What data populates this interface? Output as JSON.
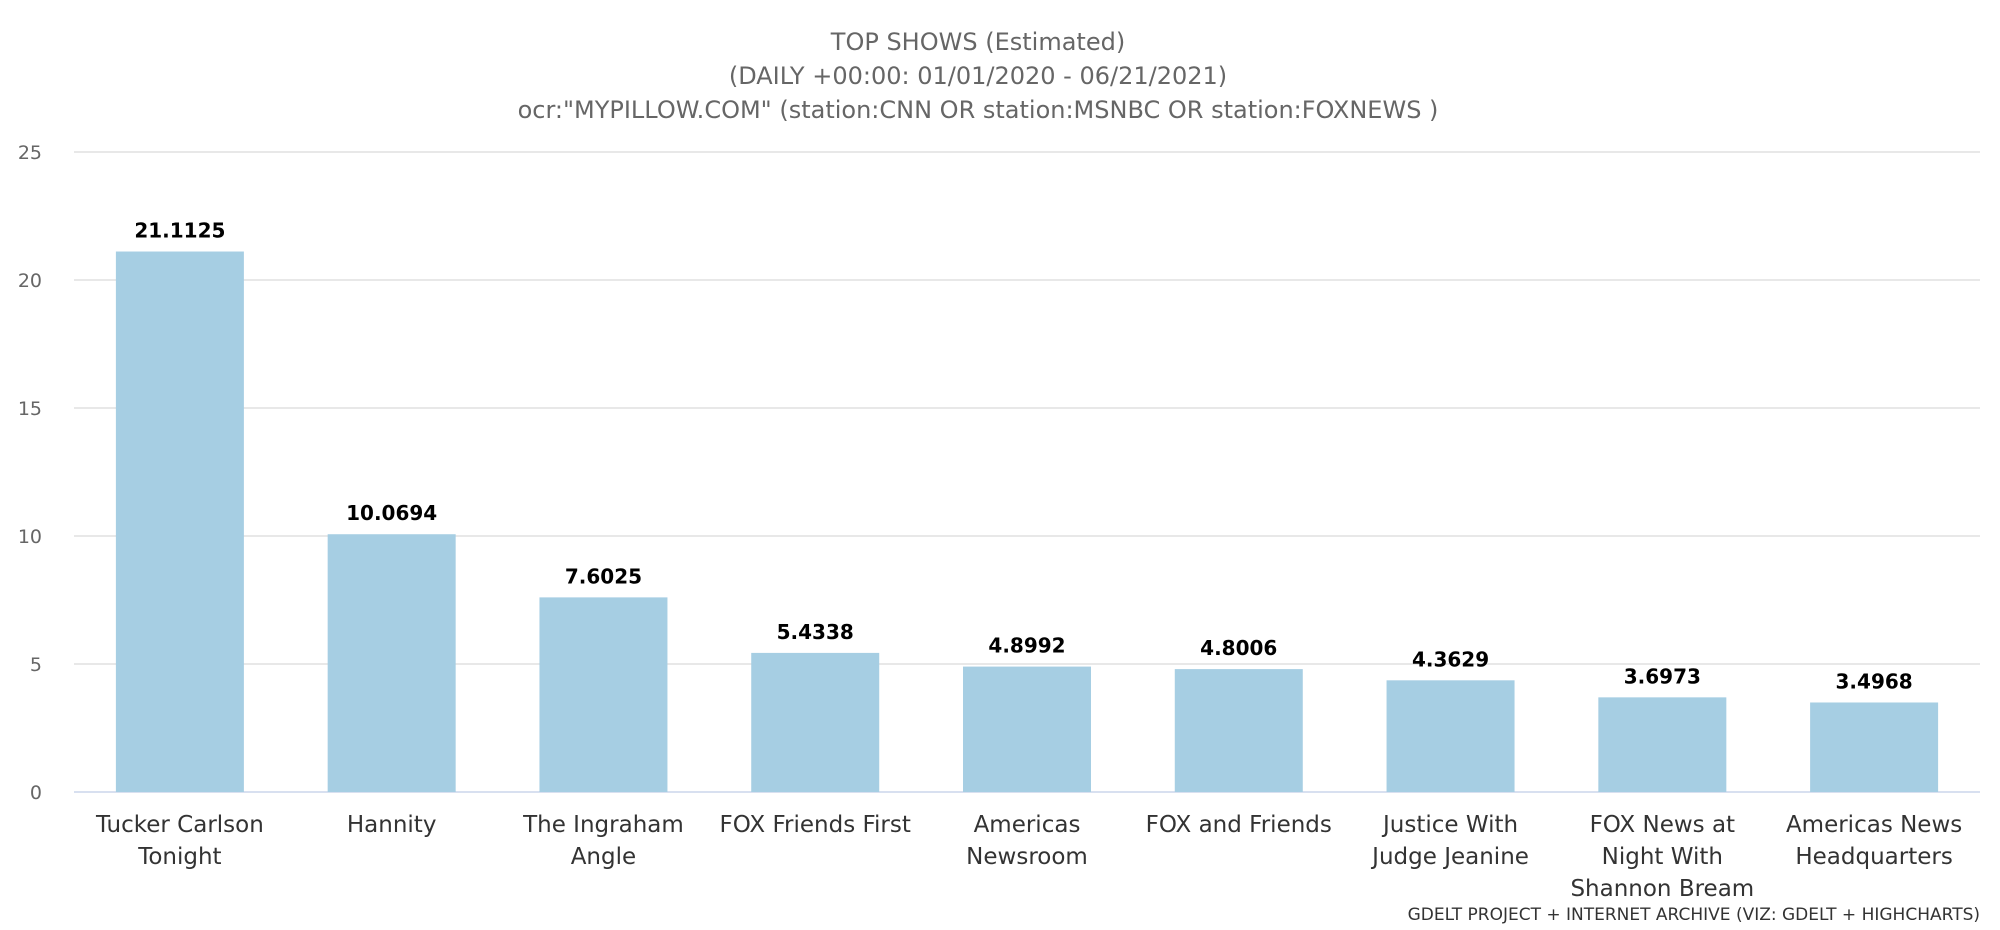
{
  "chart_data": {
    "type": "bar",
    "title": [
      "TOP SHOWS (Estimated)",
      "(DAILY +00:00: 01/01/2020 - 06/21/2021)",
      "ocr:\"MYPILLOW.COM\" (station:CNN OR station:MSNBC OR station:FOXNEWS )"
    ],
    "categories": [
      [
        "Tucker Carlson",
        "Tonight"
      ],
      [
        "Hannity"
      ],
      [
        "The Ingraham",
        "Angle"
      ],
      [
        "FOX Friends First"
      ],
      [
        "Americas",
        "Newsroom"
      ],
      [
        "FOX and Friends"
      ],
      [
        "Justice With",
        "Judge Jeanine"
      ],
      [
        "FOX News at",
        "Night With",
        "Shannon Bream"
      ],
      [
        "Americas News",
        "Headquarters"
      ]
    ],
    "values": [
      21.1125,
      10.0694,
      7.6025,
      5.4338,
      4.8992,
      4.8006,
      4.3629,
      3.6973,
      3.4968
    ],
    "value_labels": [
      "21.1125",
      "10.0694",
      "7.6025",
      "5.4338",
      "4.8992",
      "4.8006",
      "4.3629",
      "3.6973",
      "3.4968"
    ],
    "yticks": [
      0,
      5,
      10,
      15,
      20,
      25
    ],
    "ylim": [
      0,
      25
    ],
    "grid": true,
    "legend": "none",
    "bar_color": "#a6cee3",
    "credits": "GDELT PROJECT + INTERNET ARCHIVE (VIZ: GDELT + HIGHCHARTS)"
  }
}
